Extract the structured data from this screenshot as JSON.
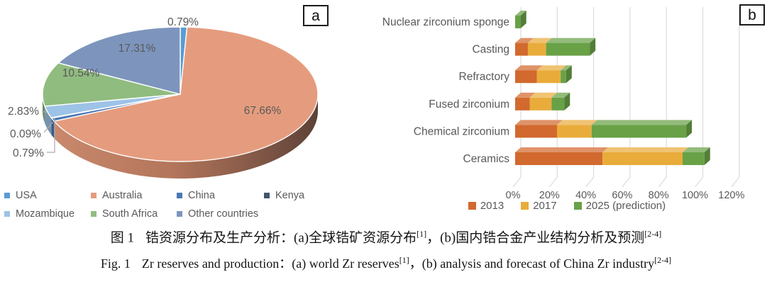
{
  "figure": {
    "panel_a_tag": "a",
    "panel_b_tag": "b"
  },
  "caption": {
    "cn": {
      "fig_label": "图 1",
      "part1": "锆资源分布及生产分析：(a)全球锆矿资源分布",
      "sup1": "[1]",
      "part2": "，(b)国内锆合金产业结构分析及预测",
      "sup2": "[2-4]"
    },
    "en": {
      "fig_label": "Fig. 1",
      "part1": "Zr reserves and production：(a) world Zr reserves",
      "sup1": "[1]",
      "part2": "，(b) analysis and forecast of China Zr industry",
      "sup2": "[2-4]"
    }
  },
  "chart_data": [
    {
      "id": "world-zr-reserves",
      "type": "pie",
      "style": "3d",
      "unit": "%",
      "slices": [
        {
          "label": "USA",
          "value": 0.79,
          "pct_text": "0.79%",
          "color": "#5B9BD5"
        },
        {
          "label": "Australia",
          "value": 67.66,
          "pct_text": "67.66%",
          "color": "#E59C7E"
        },
        {
          "label": "China",
          "value": 0.79,
          "pct_text": "0.79%",
          "color": "#4A78B5"
        },
        {
          "label": "Kenya",
          "value": 0.09,
          "pct_text": "0.09%",
          "color": "#44546A"
        },
        {
          "label": "Mozambique",
          "value": 2.83,
          "pct_text": "2.83%",
          "color": "#9DC3E6"
        },
        {
          "label": "South Africa",
          "value": 10.54,
          "pct_text": "10.54%",
          "color": "#90BC80"
        },
        {
          "label": "Other countries",
          "value": 17.31,
          "pct_text": "17.31%",
          "color": "#7D95BD"
        }
      ],
      "legend_position": "bottom"
    },
    {
      "id": "china-zr-industry",
      "type": "bar",
      "orientation": "horizontal",
      "stacked": true,
      "style": "3d",
      "categories": [
        "Nuclear zirconium sponge",
        "Casting",
        "Refractory",
        "Fused zirconium",
        "Chemical zirconium",
        "Ceramics"
      ],
      "series": [
        {
          "name": "2013",
          "color": "#D2692E",
          "values": [
            0,
            7,
            12,
            8,
            23,
            48
          ]
        },
        {
          "name": "2017",
          "color": "#E9AC3B",
          "values": [
            0,
            10,
            13,
            12,
            19,
            44
          ]
        },
        {
          "name": "2025 (prediction)",
          "color": "#69A147",
          "values": [
            3,
            24,
            3,
            7,
            52,
            12
          ]
        }
      ],
      "x_ticks": [
        "0%",
        "20%",
        "40%",
        "60%",
        "80%",
        "100%",
        "120%"
      ],
      "xlim": [
        0,
        120
      ],
      "grid": true,
      "legend_position": "bottom"
    }
  ]
}
